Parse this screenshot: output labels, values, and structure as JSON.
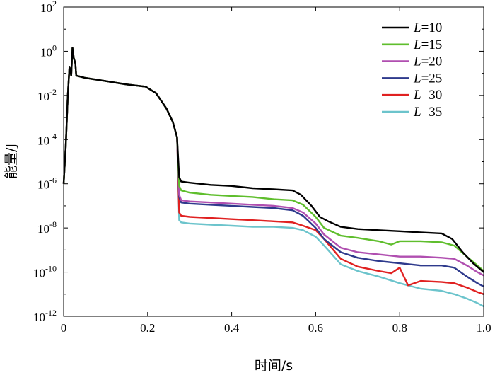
{
  "chart_data": {
    "type": "line",
    "title": "",
    "xlabel": "时间/s",
    "ylabel": "能量/J",
    "xlim": [
      0,
      1.0
    ],
    "ylim_log10": [
      -12,
      2
    ],
    "y_scale": "log",
    "grid": false,
    "legend_position": "top-right",
    "x_ticks": [
      0,
      0.2,
      0.4,
      0.6,
      0.8,
      1.0
    ],
    "x_tick_labels": [
      "0",
      "0.2",
      "0.4",
      "0.6",
      "0.8",
      "1.0"
    ],
    "y_ticks_log10": [
      -12,
      -10,
      -8,
      -6,
      -4,
      -2,
      0,
      2
    ],
    "y_tick_mantissa": [
      "10",
      "10",
      "10",
      "10",
      "10",
      "10",
      "10",
      "10"
    ],
    "y_tick_exponents": [
      "-12",
      "-10",
      "-8",
      "-6",
      "-4",
      "-2",
      "0",
      "2"
    ],
    "series": [
      {
        "name": "L=10",
        "prefix": "L",
        "suffix": "=10",
        "color": "#000000",
        "points": [
          [
            0,
            -6
          ],
          [
            0.005,
            -4.3
          ],
          [
            0.01,
            -2.0
          ],
          [
            0.014,
            -0.7
          ],
          [
            0.018,
            -1.1
          ],
          [
            0.021,
            0.15
          ],
          [
            0.024,
            -0.3
          ],
          [
            0.028,
            -0.55
          ],
          [
            0.03,
            -1.1
          ],
          [
            0.05,
            -1.2
          ],
          [
            0.1,
            -1.35
          ],
          [
            0.15,
            -1.5
          ],
          [
            0.195,
            -1.6
          ],
          [
            0.22,
            -1.9
          ],
          [
            0.245,
            -2.6
          ],
          [
            0.26,
            -3.2
          ],
          [
            0.27,
            -3.9
          ],
          [
            0.275,
            -5.7
          ],
          [
            0.28,
            -5.9
          ],
          [
            0.3,
            -5.95
          ],
          [
            0.35,
            -6.05
          ],
          [
            0.4,
            -6.1
          ],
          [
            0.45,
            -6.2
          ],
          [
            0.5,
            -6.25
          ],
          [
            0.545,
            -6.3
          ],
          [
            0.565,
            -6.5
          ],
          [
            0.59,
            -7.0
          ],
          [
            0.61,
            -7.5
          ],
          [
            0.63,
            -7.7
          ],
          [
            0.66,
            -7.95
          ],
          [
            0.7,
            -8.05
          ],
          [
            0.75,
            -8.1
          ],
          [
            0.8,
            -8.15
          ],
          [
            0.85,
            -8.2
          ],
          [
            0.9,
            -8.25
          ],
          [
            0.925,
            -8.5
          ],
          [
            0.95,
            -9.1
          ],
          [
            0.975,
            -9.6
          ],
          [
            1.0,
            -10.0
          ]
        ]
      },
      {
        "name": "L=15",
        "prefix": "L",
        "suffix": "=15",
        "color": "#5fbe2d",
        "points": [
          [
            0,
            -6
          ],
          [
            0.005,
            -4.3
          ],
          [
            0.01,
            -2.0
          ],
          [
            0.014,
            -0.7
          ],
          [
            0.018,
            -1.1
          ],
          [
            0.021,
            0.15
          ],
          [
            0.024,
            -0.3
          ],
          [
            0.028,
            -0.55
          ],
          [
            0.03,
            -1.1
          ],
          [
            0.05,
            -1.2
          ],
          [
            0.1,
            -1.35
          ],
          [
            0.15,
            -1.5
          ],
          [
            0.195,
            -1.6
          ],
          [
            0.22,
            -1.9
          ],
          [
            0.245,
            -2.6
          ],
          [
            0.26,
            -3.2
          ],
          [
            0.27,
            -3.9
          ],
          [
            0.275,
            -6.1
          ],
          [
            0.28,
            -6.3
          ],
          [
            0.3,
            -6.4
          ],
          [
            0.35,
            -6.5
          ],
          [
            0.4,
            -6.55
          ],
          [
            0.45,
            -6.6
          ],
          [
            0.5,
            -6.7
          ],
          [
            0.545,
            -6.75
          ],
          [
            0.57,
            -6.95
          ],
          [
            0.6,
            -7.5
          ],
          [
            0.62,
            -8.0
          ],
          [
            0.66,
            -8.35
          ],
          [
            0.7,
            -8.45
          ],
          [
            0.75,
            -8.6
          ],
          [
            0.78,
            -8.75
          ],
          [
            0.8,
            -8.6
          ],
          [
            0.85,
            -8.6
          ],
          [
            0.9,
            -8.65
          ],
          [
            0.93,
            -8.8
          ],
          [
            0.96,
            -9.3
          ],
          [
            0.985,
            -9.7
          ],
          [
            1.0,
            -9.95
          ]
        ]
      },
      {
        "name": "L=20",
        "prefix": "L",
        "suffix": "=20",
        "color": "#b04fb0",
        "points": [
          [
            0,
            -6
          ],
          [
            0.005,
            -4.3
          ],
          [
            0.01,
            -2.0
          ],
          [
            0.014,
            -0.7
          ],
          [
            0.018,
            -1.1
          ],
          [
            0.021,
            0.15
          ],
          [
            0.024,
            -0.3
          ],
          [
            0.028,
            -0.55
          ],
          [
            0.03,
            -1.1
          ],
          [
            0.05,
            -1.2
          ],
          [
            0.1,
            -1.35
          ],
          [
            0.15,
            -1.5
          ],
          [
            0.195,
            -1.6
          ],
          [
            0.22,
            -1.9
          ],
          [
            0.245,
            -2.6
          ],
          [
            0.26,
            -3.2
          ],
          [
            0.27,
            -3.9
          ],
          [
            0.275,
            -6.5
          ],
          [
            0.28,
            -6.75
          ],
          [
            0.3,
            -6.8
          ],
          [
            0.35,
            -6.85
          ],
          [
            0.4,
            -6.9
          ],
          [
            0.45,
            -6.95
          ],
          [
            0.5,
            -7.0
          ],
          [
            0.545,
            -7.1
          ],
          [
            0.57,
            -7.3
          ],
          [
            0.6,
            -7.8
          ],
          [
            0.62,
            -8.3
          ],
          [
            0.66,
            -8.9
          ],
          [
            0.7,
            -9.1
          ],
          [
            0.75,
            -9.2
          ],
          [
            0.8,
            -9.3
          ],
          [
            0.85,
            -9.3
          ],
          [
            0.9,
            -9.35
          ],
          [
            0.93,
            -9.4
          ],
          [
            0.96,
            -9.7
          ],
          [
            0.985,
            -10.0
          ],
          [
            1.0,
            -10.15
          ]
        ]
      },
      {
        "name": "L=25",
        "prefix": "L",
        "suffix": "=25",
        "color": "#2e3a8c",
        "points": [
          [
            0,
            -6
          ],
          [
            0.005,
            -4.3
          ],
          [
            0.01,
            -2.0
          ],
          [
            0.014,
            -0.7
          ],
          [
            0.018,
            -1.1
          ],
          [
            0.021,
            0.15
          ],
          [
            0.024,
            -0.3
          ],
          [
            0.028,
            -0.55
          ],
          [
            0.03,
            -1.1
          ],
          [
            0.05,
            -1.2
          ],
          [
            0.1,
            -1.35
          ],
          [
            0.15,
            -1.5
          ],
          [
            0.195,
            -1.6
          ],
          [
            0.22,
            -1.9
          ],
          [
            0.245,
            -2.6
          ],
          [
            0.26,
            -3.2
          ],
          [
            0.27,
            -3.9
          ],
          [
            0.275,
            -6.6
          ],
          [
            0.28,
            -6.85
          ],
          [
            0.3,
            -6.9
          ],
          [
            0.35,
            -6.95
          ],
          [
            0.4,
            -7.0
          ],
          [
            0.45,
            -7.05
          ],
          [
            0.5,
            -7.1
          ],
          [
            0.545,
            -7.2
          ],
          [
            0.57,
            -7.45
          ],
          [
            0.6,
            -8.0
          ],
          [
            0.62,
            -8.5
          ],
          [
            0.66,
            -9.1
          ],
          [
            0.7,
            -9.35
          ],
          [
            0.75,
            -9.5
          ],
          [
            0.8,
            -9.6
          ],
          [
            0.85,
            -9.7
          ],
          [
            0.9,
            -9.7
          ],
          [
            0.93,
            -9.8
          ],
          [
            0.96,
            -10.2
          ],
          [
            0.985,
            -10.5
          ],
          [
            1.0,
            -10.65
          ]
        ]
      },
      {
        "name": "L=30",
        "prefix": "L",
        "suffix": "=30",
        "color": "#e02121",
        "points": [
          [
            0,
            -6
          ],
          [
            0.005,
            -4.3
          ],
          [
            0.01,
            -2.0
          ],
          [
            0.014,
            -0.7
          ],
          [
            0.018,
            -1.1
          ],
          [
            0.021,
            0.15
          ],
          [
            0.024,
            -0.3
          ],
          [
            0.028,
            -0.55
          ],
          [
            0.03,
            -1.1
          ],
          [
            0.05,
            -1.2
          ],
          [
            0.1,
            -1.35
          ],
          [
            0.15,
            -1.5
          ],
          [
            0.195,
            -1.6
          ],
          [
            0.22,
            -1.9
          ],
          [
            0.245,
            -2.6
          ],
          [
            0.26,
            -3.2
          ],
          [
            0.27,
            -3.9
          ],
          [
            0.275,
            -7.3
          ],
          [
            0.28,
            -7.45
          ],
          [
            0.3,
            -7.5
          ],
          [
            0.35,
            -7.55
          ],
          [
            0.4,
            -7.6
          ],
          [
            0.45,
            -7.65
          ],
          [
            0.5,
            -7.7
          ],
          [
            0.545,
            -7.75
          ],
          [
            0.57,
            -7.9
          ],
          [
            0.6,
            -8.1
          ],
          [
            0.62,
            -8.5
          ],
          [
            0.66,
            -9.4
          ],
          [
            0.7,
            -9.75
          ],
          [
            0.75,
            -9.95
          ],
          [
            0.78,
            -10.05
          ],
          [
            0.8,
            -9.8
          ],
          [
            0.82,
            -10.6
          ],
          [
            0.85,
            -10.4
          ],
          [
            0.9,
            -10.45
          ],
          [
            0.93,
            -10.5
          ],
          [
            0.96,
            -10.7
          ],
          [
            0.985,
            -10.9
          ],
          [
            1.0,
            -11.0
          ]
        ]
      },
      {
        "name": "L=35",
        "prefix": "L",
        "suffix": "=35",
        "color": "#6cc4cc",
        "points": [
          [
            0,
            -6
          ],
          [
            0.005,
            -4.3
          ],
          [
            0.01,
            -2.0
          ],
          [
            0.014,
            -0.7
          ],
          [
            0.018,
            -1.1
          ],
          [
            0.021,
            0.15
          ],
          [
            0.024,
            -0.3
          ],
          [
            0.028,
            -0.55
          ],
          [
            0.03,
            -1.1
          ],
          [
            0.05,
            -1.2
          ],
          [
            0.1,
            -1.35
          ],
          [
            0.15,
            -1.5
          ],
          [
            0.195,
            -1.6
          ],
          [
            0.22,
            -1.9
          ],
          [
            0.245,
            -2.6
          ],
          [
            0.26,
            -3.2
          ],
          [
            0.27,
            -3.9
          ],
          [
            0.275,
            -7.65
          ],
          [
            0.28,
            -7.75
          ],
          [
            0.3,
            -7.8
          ],
          [
            0.35,
            -7.85
          ],
          [
            0.4,
            -7.9
          ],
          [
            0.45,
            -7.95
          ],
          [
            0.5,
            -7.95
          ],
          [
            0.545,
            -8.0
          ],
          [
            0.57,
            -8.1
          ],
          [
            0.6,
            -8.4
          ],
          [
            0.62,
            -8.8
          ],
          [
            0.66,
            -9.65
          ],
          [
            0.7,
            -9.95
          ],
          [
            0.75,
            -10.2
          ],
          [
            0.8,
            -10.5
          ],
          [
            0.85,
            -10.75
          ],
          [
            0.9,
            -10.85
          ],
          [
            0.93,
            -11.0
          ],
          [
            0.96,
            -11.2
          ],
          [
            0.985,
            -11.4
          ],
          [
            1.0,
            -11.55
          ]
        ]
      }
    ]
  }
}
